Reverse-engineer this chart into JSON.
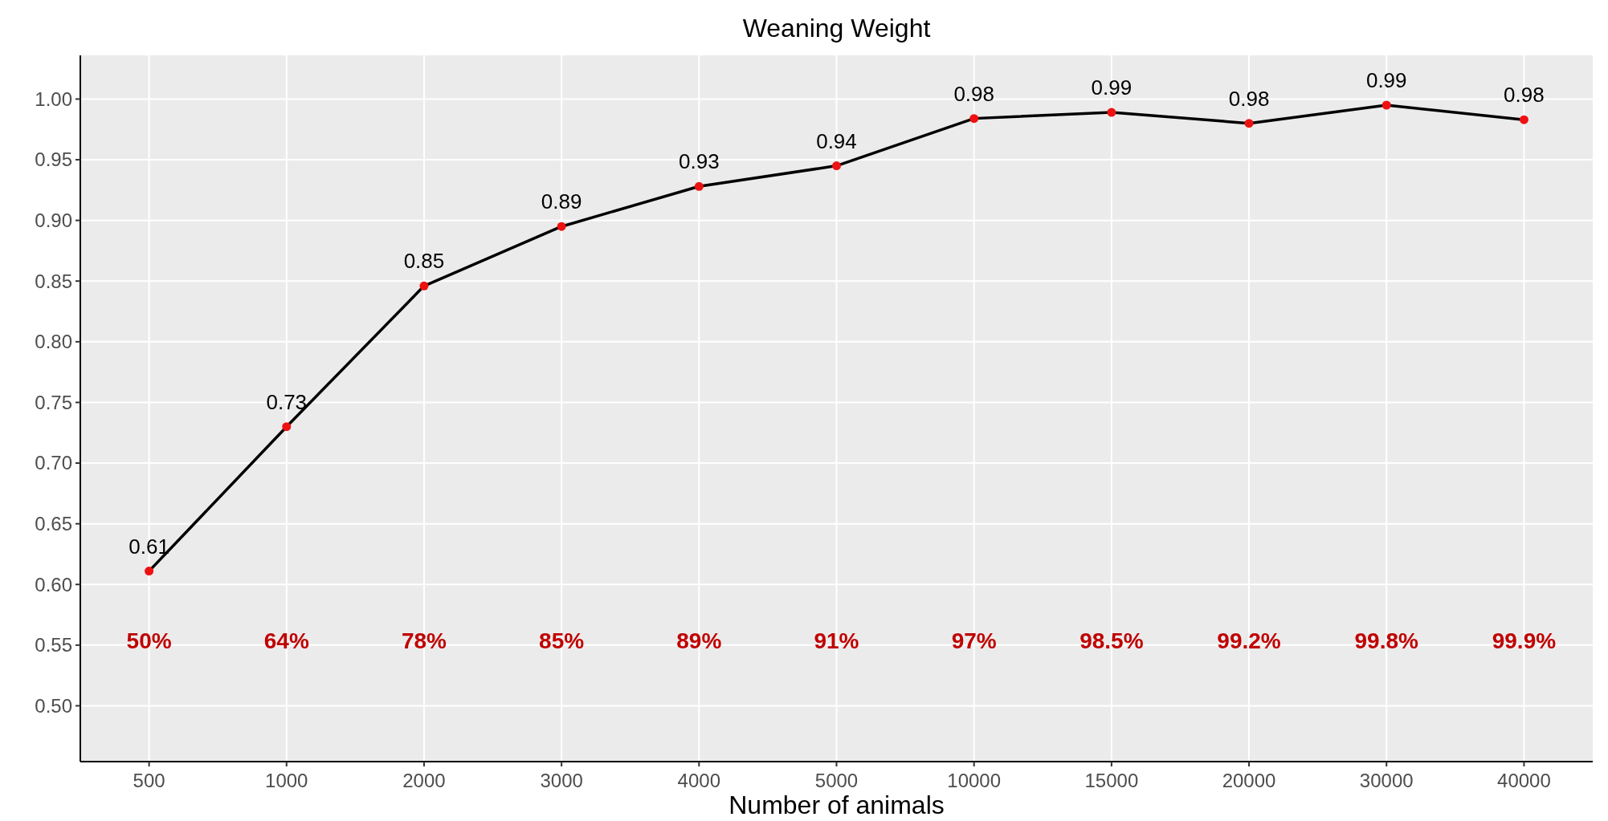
{
  "chart_data": {
    "type": "line",
    "title": "Weaning Weight",
    "xlabel": "Number of animals",
    "categories": [
      "500",
      "1000",
      "2000",
      "3000",
      "4000",
      "5000",
      "10000",
      "15000",
      "20000",
      "30000",
      "40000"
    ],
    "series": [
      {
        "color": "#000000",
        "values": [
          0.611,
          0.73,
          0.846,
          0.895,
          0.928,
          0.945,
          0.984,
          0.989,
          0.98,
          0.995,
          0.983
        ],
        "value_labels": [
          "0.61",
          "0.73",
          "0.85",
          "0.89",
          "0.93",
          "0.94",
          "0.98",
          "0.99",
          "0.98",
          "0.99",
          "0.98"
        ]
      }
    ],
    "ylim": [
      0.454,
      1.036
    ],
    "yticks": [
      {
        "value": 0.5,
        "label": "0.50"
      },
      0.55,
      {
        "value": 0.6,
        "label": "0.60"
      },
      0.65,
      {
        "value": 0.7,
        "label": "0.70"
      },
      0.75,
      {
        "value": 0.8,
        "label": "0.80"
      },
      0.85,
      {
        "value": 0.9,
        "label": "0.90"
      },
      0.95,
      {
        "value": 1.0,
        "label": "1.00"
      }
    ],
    "grid": true,
    "marker": "circle",
    "line_style": "solid",
    "annotations": [
      "50%",
      "64%",
      "78%",
      "85%",
      "89%",
      "91%",
      "97%",
      "98.5%",
      "99.2%",
      "99.8%",
      "99.9%"
    ]
  }
}
